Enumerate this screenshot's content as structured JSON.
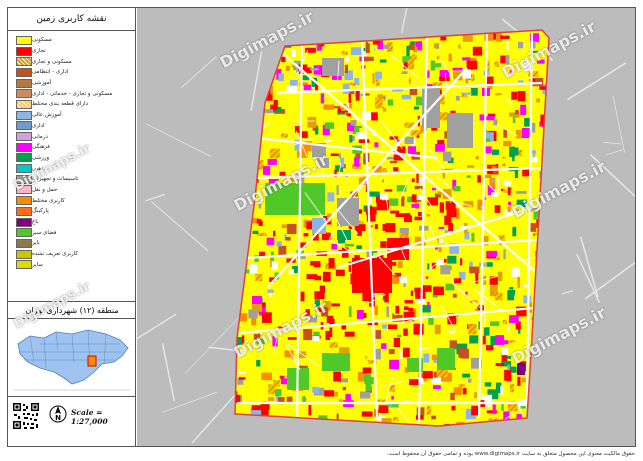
{
  "legend": {
    "title": "نقشه کاربری زمین",
    "items": [
      {
        "label": "مسکونی",
        "color": "#ffff00"
      },
      {
        "label": "تجاری",
        "color": "#ff0000"
      },
      {
        "label": "مسکونی و تجاری",
        "color": "#e4a000"
      },
      {
        "label": "اداری - انتظامی",
        "color": "#c8501e"
      },
      {
        "label": "آموزشی",
        "color": "#b4783c"
      },
      {
        "label": "مسکونی و تجاری - خدماتی - اداری",
        "color": "#d08a60"
      },
      {
        "label": "دارای قطعه بندی مختلط",
        "color": "#f5c86e"
      },
      {
        "label": "آموزش عالی",
        "color": "#8cb4e6"
      },
      {
        "label": "اداری",
        "color": "#6e9bd2"
      },
      {
        "label": "درمانی",
        "color": "#d0a0e0"
      },
      {
        "label": "فرهنگی",
        "color": "#ff00ff"
      },
      {
        "label": "ورزشی",
        "color": "#00a050"
      },
      {
        "label": "مذهبی",
        "color": "#00c8c8"
      },
      {
        "label": "تاسیسات و تجهیزات",
        "color": "#a0a0a0"
      },
      {
        "label": "حمل و نقل",
        "color": "#ffb4c8"
      },
      {
        "label": "کاربری مختلط",
        "color": "#ff8c00"
      },
      {
        "label": "پارکینگ",
        "color": "#ff6e1e"
      },
      {
        "label": "باغ",
        "color": "#800080"
      },
      {
        "label": "فضای سبز",
        "color": "#50c828"
      },
      {
        "label": "بایر",
        "color": "#8c7850"
      },
      {
        "label": "کاربری تعریف نشده",
        "color": "#c8c800"
      },
      {
        "label": "سایر",
        "color": "#dcdc00"
      }
    ]
  },
  "region": {
    "title": "منطقه (۱۲) شهرداری تهران"
  },
  "scale": {
    "label": "Scale = 1:27,000"
  },
  "north": {
    "letter": "N"
  },
  "watermark": {
    "text": "Digimaps.ir"
  },
  "footer": {
    "text": "حقوق مالکیت معنوی این محصول متعلق به سایت www.digimaps.ir بوده و تمامی حقوق آن محفوظ است."
  }
}
